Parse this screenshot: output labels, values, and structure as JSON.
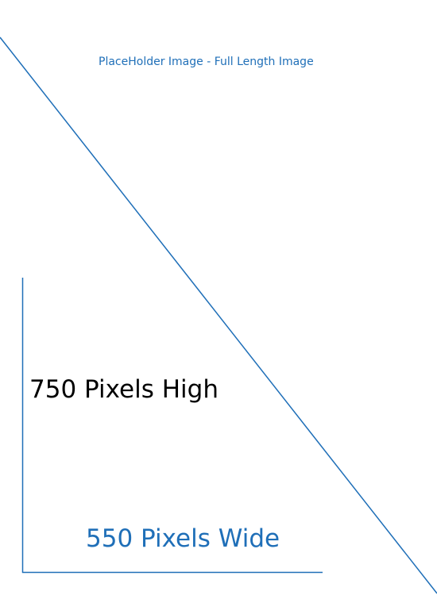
{
  "placeholder": {
    "caption": "PlaceHolder Image - Full Length Image",
    "height_label": "750 Pixels High",
    "width_label": "550 Pixels Wide"
  },
  "colors": {
    "accent": "#1f6fb8",
    "text_dark": "#000000",
    "background": "#ffffff"
  }
}
